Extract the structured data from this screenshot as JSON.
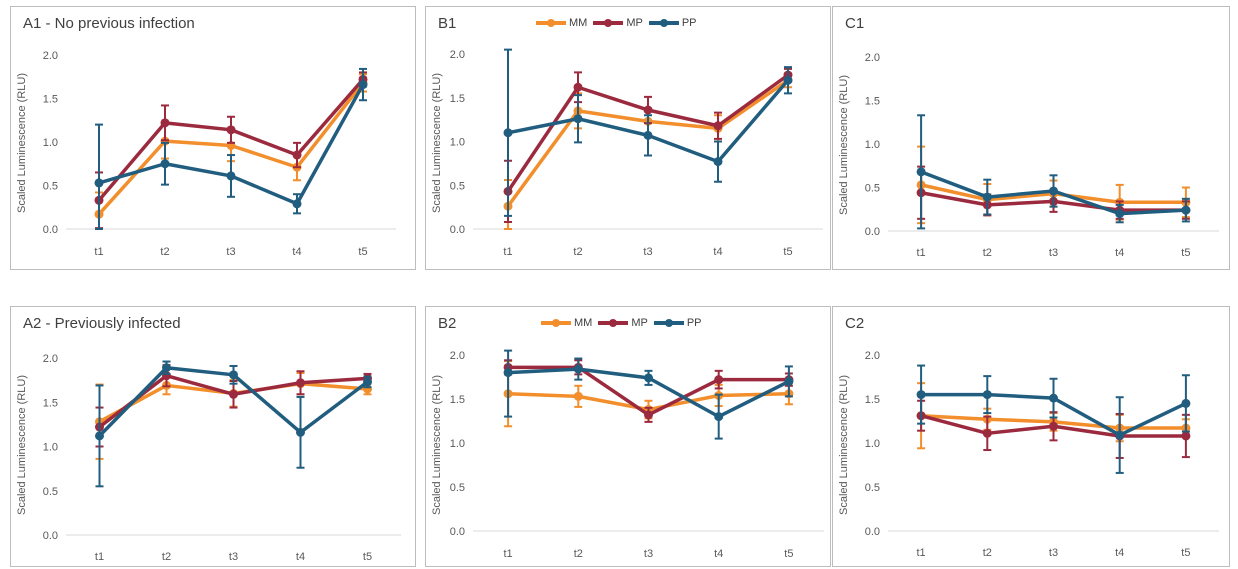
{
  "colors": {
    "MM": "#f28e2b",
    "MP": "#9c2a3e",
    "PP": "#215d7f",
    "axis": "#d9d9d9",
    "tick": "#595959",
    "border": "#bdbdbd"
  },
  "legend": [
    {
      "name": "MM",
      "color": "#f28e2b"
    },
    {
      "name": "MP",
      "color": "#9c2a3e"
    },
    {
      "name": "PP",
      "color": "#215d7f"
    }
  ],
  "chart_data": [
    {
      "id": "A1",
      "type": "line",
      "title": "A1 - No previous infection",
      "ylabel": "Scaled Luminescence (RLU)",
      "xlabel": "",
      "categories": [
        "t1",
        "t2",
        "t3",
        "t4",
        "t5"
      ],
      "ylim": [
        0,
        2.0
      ],
      "yticks": [
        "0.0",
        "0.5",
        "1.0",
        "1.5",
        "2.0"
      ],
      "grid": false,
      "legend": "none",
      "series": [
        {
          "name": "MM",
          "values": [
            0.17,
            1.01,
            0.96,
            0.71,
            1.68
          ],
          "errors": [
            0.25,
            0.2,
            0.18,
            0.15,
            0.1
          ]
        },
        {
          "name": "MP",
          "values": [
            0.33,
            1.22,
            1.14,
            0.85,
            1.72
          ],
          "errors": [
            0.32,
            0.2,
            0.15,
            0.14,
            0.08
          ]
        },
        {
          "name": "PP",
          "values": [
            0.53,
            0.75,
            0.61,
            0.29,
            1.66
          ],
          "errors": [
            0.67,
            0.24,
            0.24,
            0.11,
            0.18
          ]
        }
      ]
    },
    {
      "id": "B1",
      "type": "line",
      "title": "B1",
      "ylabel": "Scaled Luminescence (RLU)",
      "xlabel": "",
      "categories": [
        "t1",
        "t2",
        "t3",
        "t4",
        "t5"
      ],
      "ylim": [
        0,
        2.0
      ],
      "yticks": [
        "0.0",
        "0.5",
        "1.0",
        "1.5",
        "2.0"
      ],
      "grid": false,
      "legend": "top-center",
      "series": [
        {
          "name": "MM",
          "values": [
            0.26,
            1.35,
            1.23,
            1.15,
            1.7
          ],
          "errors": [
            0.3,
            0.2,
            0.15,
            0.15,
            0.08
          ]
        },
        {
          "name": "MP",
          "values": [
            0.43,
            1.62,
            1.36,
            1.18,
            1.76
          ],
          "errors": [
            0.35,
            0.17,
            0.15,
            0.15,
            0.07
          ]
        },
        {
          "name": "PP",
          "values": [
            1.1,
            1.26,
            1.07,
            0.77,
            1.7
          ],
          "errors": [
            0.95,
            0.27,
            0.23,
            0.23,
            0.15
          ]
        }
      ]
    },
    {
      "id": "C1",
      "type": "line",
      "title": "C1",
      "ylabel": "Scaled Luminescence (RLU)",
      "xlabel": "",
      "categories": [
        "t1",
        "t2",
        "t3",
        "t4",
        "t5"
      ],
      "ylim": [
        0,
        2.0
      ],
      "yticks": [
        "0.0",
        "0.5",
        "1.0",
        "1.5",
        "2.0"
      ],
      "grid": false,
      "legend": "none",
      "series": [
        {
          "name": "MM",
          "values": [
            0.53,
            0.36,
            0.43,
            0.33,
            0.33
          ],
          "errors": [
            0.44,
            0.18,
            0.15,
            0.2,
            0.17
          ]
        },
        {
          "name": "MP",
          "values": [
            0.44,
            0.3,
            0.34,
            0.24,
            0.24
          ],
          "errors": [
            0.3,
            0.12,
            0.12,
            0.1,
            0.1
          ]
        },
        {
          "name": "PP",
          "values": [
            0.68,
            0.39,
            0.46,
            0.2,
            0.24
          ],
          "errors": [
            0.65,
            0.2,
            0.18,
            0.1,
            0.13
          ]
        }
      ]
    },
    {
      "id": "A2",
      "type": "line",
      "title": "A2 - Previously infected",
      "ylabel": "Scaled Luminescence (RLU)",
      "xlabel": "",
      "categories": [
        "t1",
        "t2",
        "t3",
        "t4",
        "t5"
      ],
      "ylim": [
        0,
        2.0
      ],
      "yticks": [
        "0.0",
        "0.5",
        "1.0",
        "1.5",
        "2.0"
      ],
      "grid": false,
      "legend": "none",
      "series": [
        {
          "name": "MM",
          "values": [
            1.28,
            1.69,
            1.6,
            1.71,
            1.65
          ],
          "errors": [
            0.42,
            0.1,
            0.15,
            0.12,
            0.06
          ]
        },
        {
          "name": "MP",
          "values": [
            1.22,
            1.8,
            1.59,
            1.72,
            1.77
          ],
          "errors": [
            0.22,
            0.12,
            0.15,
            0.13,
            0.05
          ]
        },
        {
          "name": "PP",
          "values": [
            1.12,
            1.89,
            1.81,
            1.16,
            1.73
          ],
          "errors": [
            0.57,
            0.07,
            0.1,
            0.4,
            0.06
          ]
        }
      ]
    },
    {
      "id": "B2",
      "type": "line",
      "title": "B2",
      "ylabel": "Scaled Luminescence (RLU)",
      "xlabel": "",
      "categories": [
        "t1",
        "t2",
        "t3",
        "t4",
        "t5"
      ],
      "ylim": [
        0,
        2.0
      ],
      "yticks": [
        "0.0",
        "0.5",
        "1.0",
        "1.5",
        "2.0"
      ],
      "grid": false,
      "legend": "top-center",
      "series": [
        {
          "name": "MM",
          "values": [
            1.56,
            1.53,
            1.38,
            1.54,
            1.56
          ],
          "errors": [
            0.37,
            0.12,
            0.1,
            0.12,
            0.12
          ]
        },
        {
          "name": "MP",
          "values": [
            1.86,
            1.86,
            1.32,
            1.72,
            1.72
          ],
          "errors": [
            0.08,
            0.08,
            0.08,
            0.1,
            0.07
          ]
        },
        {
          "name": "PP",
          "values": [
            1.8,
            1.84,
            1.74,
            1.3,
            1.7
          ],
          "errors": [
            0.5,
            0.12,
            0.08,
            0.25,
            0.17
          ]
        }
      ]
    },
    {
      "id": "C2",
      "type": "line",
      "title": "C2",
      "ylabel": "Scaled Luminescence (RLU)",
      "xlabel": "",
      "categories": [
        "t1",
        "t2",
        "t3",
        "t4",
        "t5"
      ],
      "ylim": [
        0,
        2.0
      ],
      "yticks": [
        "0.0",
        "0.5",
        "1.0",
        "1.5",
        "2.0"
      ],
      "grid": false,
      "legend": "none",
      "series": [
        {
          "name": "MM",
          "values": [
            1.31,
            1.27,
            1.24,
            1.17,
            1.17
          ],
          "errors": [
            0.37,
            0.12,
            0.1,
            0.15,
            0.1
          ]
        },
        {
          "name": "MP",
          "values": [
            1.31,
            1.11,
            1.19,
            1.08,
            1.08
          ],
          "errors": [
            0.17,
            0.19,
            0.16,
            0.25,
            0.24
          ]
        },
        {
          "name": "PP",
          "values": [
            1.55,
            1.55,
            1.51,
            1.09,
            1.45
          ],
          "errors": [
            0.33,
            0.21,
            0.22,
            0.43,
            0.32
          ]
        }
      ]
    }
  ]
}
